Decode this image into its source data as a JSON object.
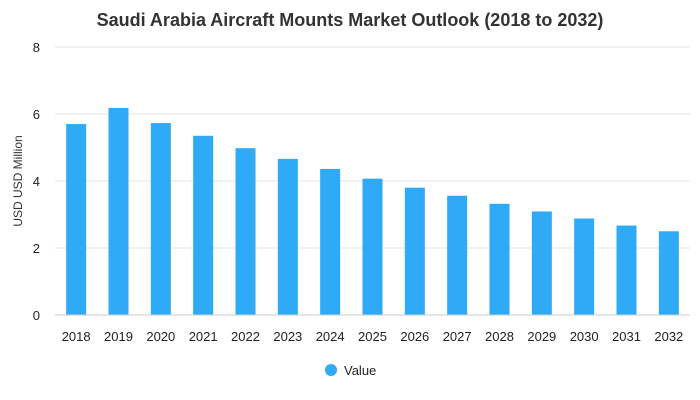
{
  "chart_data": {
    "type": "bar",
    "title": "Saudi Arabia Aircraft Mounts Market Outlook (2018 to 2032)",
    "ylabel": "USD USD Million",
    "xlabel": "",
    "ylim": [
      0,
      8
    ],
    "yticks": [
      0,
      2,
      4,
      6,
      8
    ],
    "grid": true,
    "legend_position": "bottom",
    "categories": [
      "2018",
      "2019",
      "2020",
      "2021",
      "2022",
      "2023",
      "2024",
      "2025",
      "2026",
      "2027",
      "2028",
      "2029",
      "2030",
      "2031",
      "2032"
    ],
    "series": [
      {
        "name": "Value",
        "color": "#2eaaf7",
        "values": [
          5.7,
          6.18,
          5.73,
          5.35,
          4.98,
          4.66,
          4.36,
          4.07,
          3.8,
          3.56,
          3.32,
          3.09,
          2.88,
          2.67,
          2.5
        ]
      }
    ]
  }
}
